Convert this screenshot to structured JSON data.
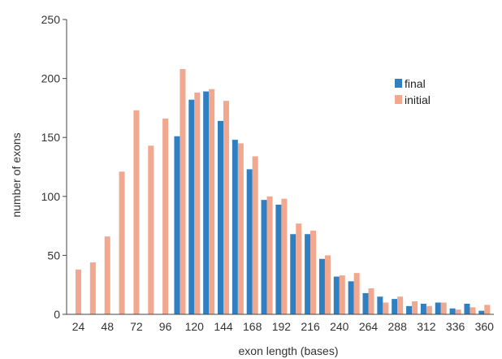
{
  "chart_data": {
    "type": "bar",
    "xlabel": "exon length (bases)",
    "ylabel": "number of exons",
    "ylim": [
      0,
      250
    ],
    "yticks": [
      "0",
      "50",
      "100",
      "150",
      "200",
      "250"
    ],
    "xticks": [
      "24",
      "48",
      "72",
      "96",
      "120",
      "144",
      "168",
      "192",
      "216",
      "240",
      "264",
      "288",
      "312",
      "336",
      "360"
    ],
    "categories": [
      24,
      36,
      48,
      60,
      72,
      84,
      96,
      108,
      120,
      132,
      144,
      156,
      168,
      180,
      192,
      204,
      216,
      228,
      240,
      252,
      264,
      276,
      288,
      300,
      312,
      324,
      336,
      348,
      360
    ],
    "legend_position": "top-right",
    "grid": false,
    "series": [
      {
        "name": "final",
        "color": "#2f7fc1",
        "values": [
          0,
          0,
          0,
          0,
          0,
          0,
          0,
          151,
          182,
          189,
          164,
          148,
          123,
          97,
          93,
          68,
          68,
          47,
          32,
          28,
          18,
          15,
          13,
          7,
          9,
          10,
          5,
          9,
          3
        ]
      },
      {
        "name": "initial",
        "color": "#f2a78f",
        "values": [
          38,
          44,
          66,
          121,
          173,
          143,
          166,
          208,
          188,
          191,
          181,
          145,
          134,
          100,
          98,
          77,
          71,
          50,
          33,
          35,
          22,
          10,
          15,
          11,
          7,
          10,
          4,
          6,
          8
        ]
      }
    ]
  }
}
